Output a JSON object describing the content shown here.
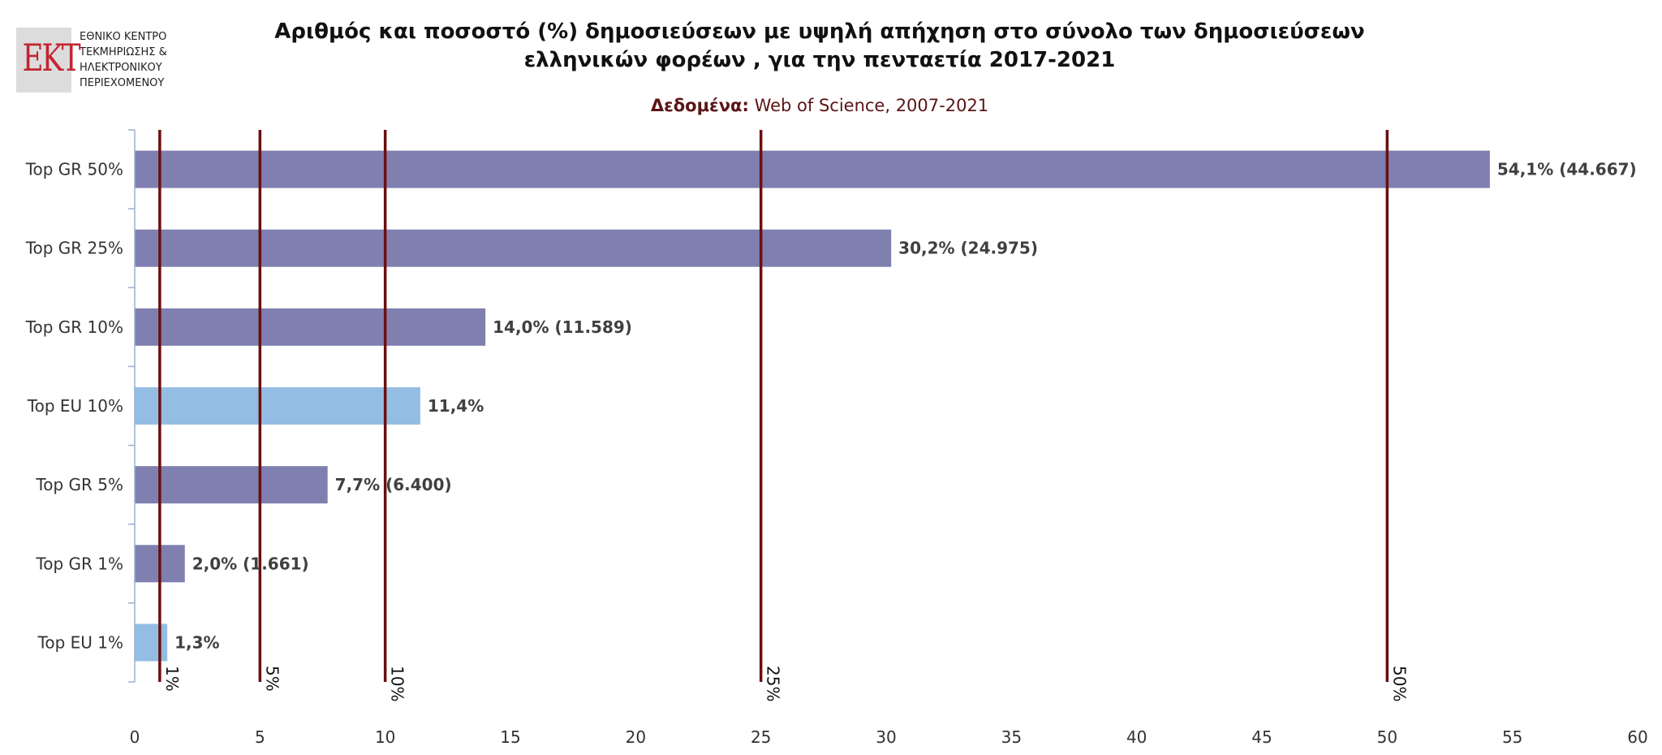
{
  "logo": {
    "letters": "ΕΚΤ",
    "lines": [
      "ΕΘΝΙΚΟ ΚΕΝΤΡΟ",
      "ΤΕΚΜΗΡΙΩΣΗΣ &",
      "ΗΛΕΚΤΡΟΝΙΚΟΥ",
      "ΠΕΡΙΕΧΟΜΕΝΟΥ"
    ]
  },
  "chart_data": {
    "type": "bar",
    "orientation": "horizontal",
    "title_line1": "Αριθμός και ποσοστό (%) δημοσιεύσεων με υψηλή απήχηση στο σύνολο των δημοσιεύσεων",
    "title_line2": "ελληνικών φορέων , για την πενταετία 2017-2021",
    "subtitle_bold": "Δεδομένα:",
    "subtitle_rest": " Web of Science, 2007-2021",
    "xlim": [
      0,
      60
    ],
    "xticks": [
      0,
      5,
      10,
      15,
      20,
      25,
      30,
      35,
      40,
      45,
      50,
      55,
      60
    ],
    "grid": false,
    "categories": [
      "Top GR 50%",
      "Top GR 25%",
      "Top GR 10%",
      "Top EU 10%",
      "Top GR 5%",
      "Top GR 1%",
      "Top EU 1%"
    ],
    "values": [
      54.1,
      30.2,
      14.0,
      11.4,
      7.7,
      2.0,
      1.3
    ],
    "data_labels": [
      "54,1% (44.667)",
      "30,2% (24.975)",
      "14,0% (11.589)",
      "11,4%",
      "7,7% (6.400)",
      "2,0% (1.661)",
      "1,3%"
    ],
    "group": [
      "GR",
      "GR",
      "GR",
      "EU",
      "GR",
      "GR",
      "EU"
    ],
    "colors": {
      "GR": "#7f7fb0",
      "EU": "#94bde3",
      "reference_line": "#6b0f0f",
      "axis": "#9ab0cc"
    },
    "reference_lines": [
      {
        "value": 1,
        "label": "1%"
      },
      {
        "value": 5,
        "label": "5%"
      },
      {
        "value": 10,
        "label": "10%"
      },
      {
        "value": 25,
        "label": "25%"
      },
      {
        "value": 50,
        "label": "50%"
      }
    ]
  }
}
